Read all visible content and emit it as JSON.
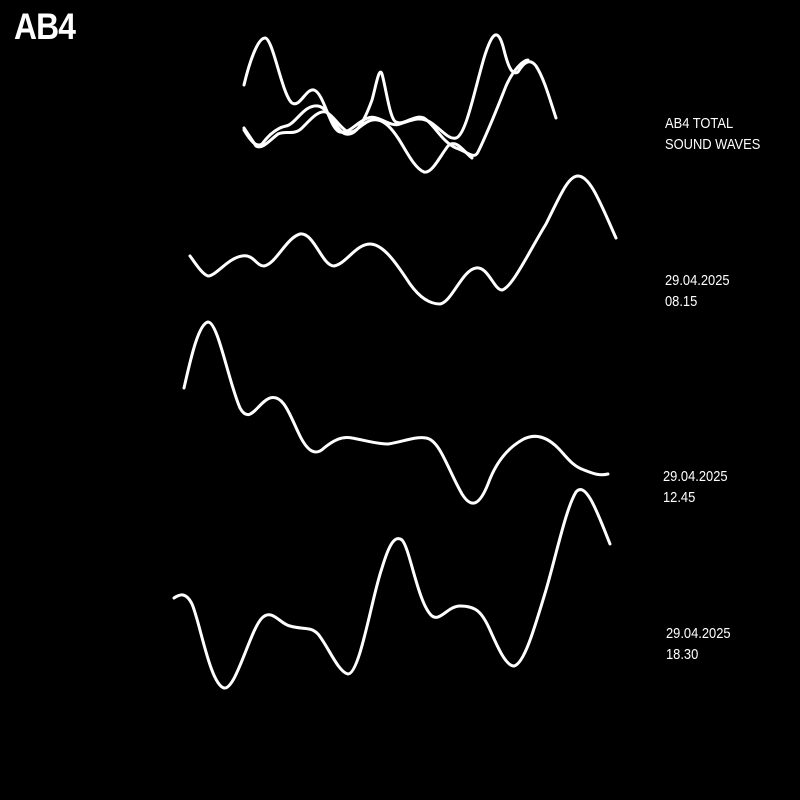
{
  "brand": {
    "logo_text": "AB4"
  },
  "total": {
    "line1": "AB4 TOTAL",
    "line2": "SOUND WAVES"
  },
  "recordings": [
    {
      "date": "29.04.2025",
      "time": "08.15"
    },
    {
      "date": "29.04.2025",
      "time": "12.45"
    },
    {
      "date": "29.04.2025",
      "time": "18.30"
    }
  ],
  "colors": {
    "background": "#000000",
    "foreground": "#ffffff"
  }
}
